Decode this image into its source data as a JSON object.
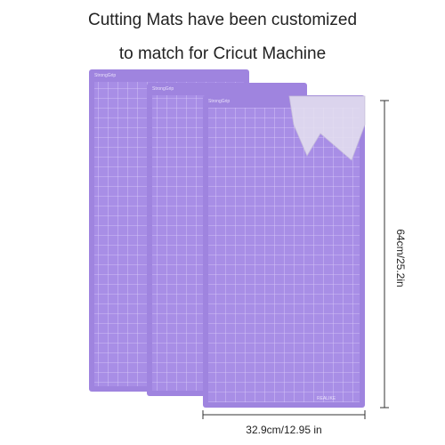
{
  "header": {
    "line1": "Cutting Mats have been customized",
    "line2": "to match for Cricut Machine"
  },
  "mats": [
    {
      "brand": "StrongGrip"
    },
    {
      "brand": "StrongGrip"
    },
    {
      "brand": "StrongGrip"
    }
  ],
  "footer_brand": "REALIKE",
  "dimensions": {
    "height": "64cm/25.2in",
    "width": "32.9cm/12.95 in"
  }
}
